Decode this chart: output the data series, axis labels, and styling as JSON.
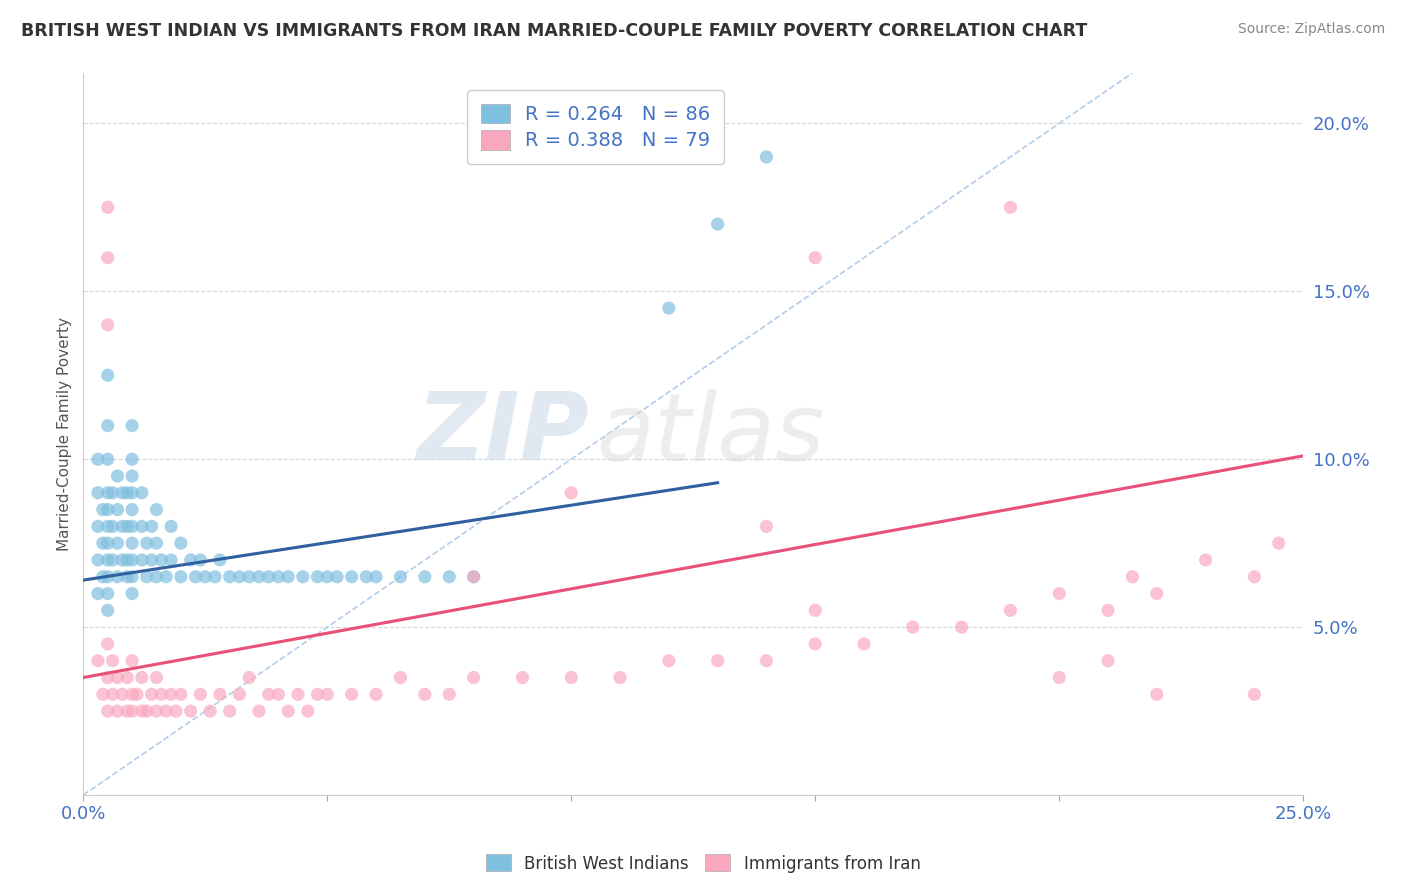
{
  "title": "BRITISH WEST INDIAN VS IMMIGRANTS FROM IRAN MARRIED-COUPLE FAMILY POVERTY CORRELATION CHART",
  "source": "Source: ZipAtlas.com",
  "ylabel": "Married-Couple Family Poverty",
  "xlim": [
    0.0,
    0.25
  ],
  "ylim": [
    0.0,
    0.215
  ],
  "xticks": [
    0.0,
    0.05,
    0.1,
    0.15,
    0.2,
    0.25
  ],
  "yticks": [
    0.0,
    0.05,
    0.1,
    0.15,
    0.2
  ],
  "blue_R": 0.264,
  "blue_N": 86,
  "pink_R": 0.388,
  "pink_N": 79,
  "blue_color": "#7fbfdf",
  "pink_color": "#f9a8bf",
  "blue_line_color": "#3060a0",
  "pink_line_color": "#e8507a",
  "legend_label_blue": "British West Indians",
  "legend_label_pink": "Immigrants from Iran",
  "watermark_zip": "ZIP",
  "watermark_atlas": "atlas",
  "ref_line_color": "#aac8e8",
  "ref_line_style": "--",
  "blue_trend_x0": 0.0,
  "blue_trend_y0": 0.064,
  "blue_trend_x1": 0.13,
  "blue_trend_y1": 0.093,
  "pink_trend_x0": 0.0,
  "pink_trend_y0": 0.035,
  "pink_trend_x1": 0.25,
  "pink_trend_y1": 0.101,
  "blue_scatter_x": [
    0.003,
    0.003,
    0.003,
    0.003,
    0.003,
    0.004,
    0.004,
    0.004,
    0.005,
    0.005,
    0.005,
    0.005,
    0.005,
    0.005,
    0.005,
    0.005,
    0.005,
    0.005,
    0.005,
    0.006,
    0.006,
    0.006,
    0.007,
    0.007,
    0.007,
    0.007,
    0.008,
    0.008,
    0.008,
    0.009,
    0.009,
    0.009,
    0.009,
    0.01,
    0.01,
    0.01,
    0.01,
    0.01,
    0.01,
    0.01,
    0.01,
    0.01,
    0.01,
    0.012,
    0.012,
    0.012,
    0.013,
    0.013,
    0.014,
    0.014,
    0.015,
    0.015,
    0.015,
    0.016,
    0.017,
    0.018,
    0.018,
    0.02,
    0.02,
    0.022,
    0.023,
    0.024,
    0.025,
    0.027,
    0.028,
    0.03,
    0.032,
    0.034,
    0.036,
    0.038,
    0.04,
    0.042,
    0.045,
    0.048,
    0.05,
    0.052,
    0.055,
    0.058,
    0.06,
    0.065,
    0.07,
    0.075,
    0.08,
    0.12,
    0.13,
    0.14
  ],
  "blue_scatter_y": [
    0.06,
    0.07,
    0.08,
    0.09,
    0.1,
    0.065,
    0.075,
    0.085,
    0.055,
    0.06,
    0.065,
    0.07,
    0.075,
    0.08,
    0.085,
    0.09,
    0.1,
    0.11,
    0.125,
    0.07,
    0.08,
    0.09,
    0.065,
    0.075,
    0.085,
    0.095,
    0.07,
    0.08,
    0.09,
    0.065,
    0.07,
    0.08,
    0.09,
    0.06,
    0.065,
    0.07,
    0.075,
    0.08,
    0.085,
    0.09,
    0.095,
    0.1,
    0.11,
    0.07,
    0.08,
    0.09,
    0.065,
    0.075,
    0.07,
    0.08,
    0.065,
    0.075,
    0.085,
    0.07,
    0.065,
    0.07,
    0.08,
    0.065,
    0.075,
    0.07,
    0.065,
    0.07,
    0.065,
    0.065,
    0.07,
    0.065,
    0.065,
    0.065,
    0.065,
    0.065,
    0.065,
    0.065,
    0.065,
    0.065,
    0.065,
    0.065,
    0.065,
    0.065,
    0.065,
    0.065,
    0.065,
    0.065,
    0.065,
    0.145,
    0.17,
    0.19
  ],
  "pink_scatter_x": [
    0.003,
    0.004,
    0.005,
    0.005,
    0.005,
    0.006,
    0.006,
    0.007,
    0.007,
    0.008,
    0.009,
    0.009,
    0.01,
    0.01,
    0.01,
    0.011,
    0.012,
    0.012,
    0.013,
    0.014,
    0.015,
    0.015,
    0.016,
    0.017,
    0.018,
    0.019,
    0.02,
    0.022,
    0.024,
    0.026,
    0.028,
    0.03,
    0.032,
    0.034,
    0.036,
    0.038,
    0.04,
    0.042,
    0.044,
    0.046,
    0.048,
    0.05,
    0.055,
    0.06,
    0.065,
    0.07,
    0.075,
    0.08,
    0.09,
    0.1,
    0.11,
    0.12,
    0.13,
    0.14,
    0.15,
    0.16,
    0.17,
    0.18,
    0.19,
    0.2,
    0.21,
    0.215,
    0.22,
    0.23,
    0.24,
    0.245,
    0.005,
    0.005,
    0.005,
    0.08,
    0.1,
    0.15,
    0.2,
    0.22,
    0.24,
    0.15,
    0.19,
    0.21,
    0.14
  ],
  "pink_scatter_y": [
    0.04,
    0.03,
    0.025,
    0.035,
    0.045,
    0.03,
    0.04,
    0.025,
    0.035,
    0.03,
    0.025,
    0.035,
    0.025,
    0.03,
    0.04,
    0.03,
    0.025,
    0.035,
    0.025,
    0.03,
    0.025,
    0.035,
    0.03,
    0.025,
    0.03,
    0.025,
    0.03,
    0.025,
    0.03,
    0.025,
    0.03,
    0.025,
    0.03,
    0.035,
    0.025,
    0.03,
    0.03,
    0.025,
    0.03,
    0.025,
    0.03,
    0.03,
    0.03,
    0.03,
    0.035,
    0.03,
    0.03,
    0.035,
    0.035,
    0.035,
    0.035,
    0.04,
    0.04,
    0.04,
    0.045,
    0.045,
    0.05,
    0.05,
    0.055,
    0.06,
    0.055,
    0.065,
    0.06,
    0.07,
    0.065,
    0.075,
    0.14,
    0.16,
    0.175,
    0.065,
    0.09,
    0.055,
    0.035,
    0.03,
    0.03,
    0.16,
    0.175,
    0.04,
    0.08
  ]
}
